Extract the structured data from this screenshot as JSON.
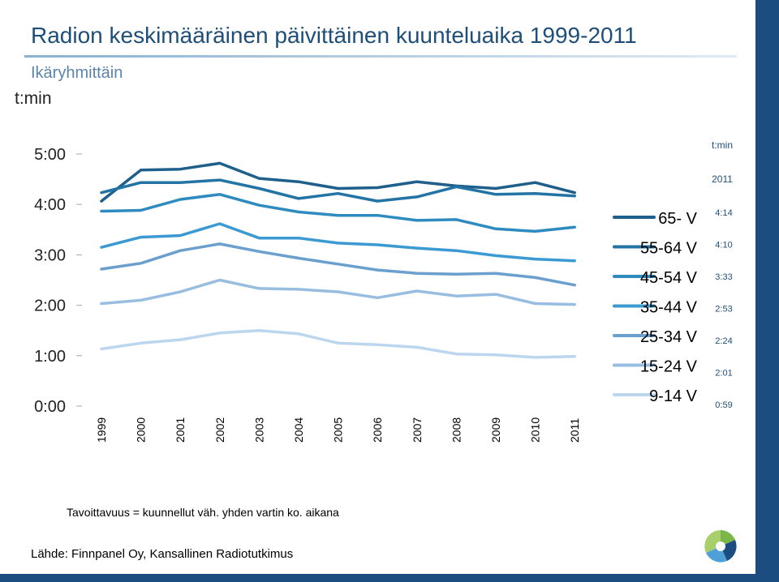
{
  "header": {
    "title": "Radion keskimääräinen päivittäinen kuunteluaika 1999-2011",
    "subtitle": "Ikäryhmittäin",
    "unit": "t:min"
  },
  "footer": {
    "note": "Tavoittavuus = kuunnellut väh. yhden vartin ko. aikana",
    "source": "Lähde: Finnpanel Oy, Kansallinen Radiotutkimus"
  },
  "chart_data": {
    "type": "line",
    "ylabel": "t:min",
    "y_ticks": [
      "5:00",
      "4:00",
      "3:00",
      "2:00",
      "1:00",
      "0:00"
    ],
    "ylim": [
      0,
      300
    ],
    "x": [
      "1999",
      "2000",
      "2001",
      "2002",
      "2003",
      "2004",
      "2005",
      "2006",
      "2007",
      "2008",
      "2009",
      "2010",
      "2011"
    ],
    "value_table": {
      "header": "t:min",
      "year": "2011"
    },
    "legend_position": "right",
    "series": [
      {
        "name": "65- V",
        "color": "#1f5f8b",
        "value_2011": "4:14",
        "values": [
          244,
          281,
          282,
          289,
          271,
          267,
          259,
          260,
          267,
          262,
          259,
          266,
          254
        ]
      },
      {
        "name": "55-64 V",
        "color": "#2274a5",
        "value_2011": "4:10",
        "values": [
          254,
          266,
          266,
          269,
          259,
          247,
          253,
          244,
          249,
          261,
          252,
          253,
          250
        ]
      },
      {
        "name": "45-54 V",
        "color": "#2e8bc0",
        "value_2011": "3:33",
        "values": [
          232,
          233,
          246,
          252,
          239,
          231,
          227,
          227,
          221,
          222,
          211,
          208,
          213
        ]
      },
      {
        "name": "35-44 V",
        "color": "#3b9ad1",
        "value_2011": "2:53",
        "values": [
          189,
          201,
          203,
          217,
          200,
          200,
          194,
          192,
          188,
          185,
          179,
          175,
          173
        ]
      },
      {
        "name": "25-34 V",
        "color": "#6b9fce",
        "value_2011": "2:24",
        "values": [
          163,
          170,
          185,
          193,
          184,
          176,
          169,
          162,
          158,
          157,
          158,
          153,
          144
        ]
      },
      {
        "name": "15-24 V",
        "color": "#97bde0",
        "value_2011": "2:01",
        "values": [
          122,
          126,
          136,
          150,
          140,
          139,
          136,
          129,
          137,
          131,
          133,
          122,
          121
        ]
      },
      {
        "name": "9-14 V",
        "color": "#bcd6ef",
        "value_2011": "0:59",
        "values": [
          68,
          75,
          79,
          87,
          90,
          86,
          75,
          73,
          70,
          62,
          61,
          58,
          59
        ]
      }
    ]
  }
}
